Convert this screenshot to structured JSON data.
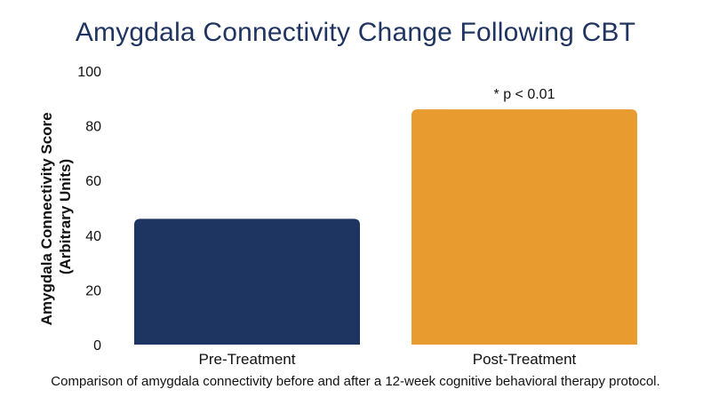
{
  "chart_data": {
    "type": "bar",
    "title": "Amygdala Connectivity Change Following CBT",
    "ylabel_lines": [
      "Amygdala Connectivity Score",
      "(Arbitrary Units)"
    ],
    "xlabel": "",
    "categories": [
      "Pre-Treatment",
      "Post-Treatment"
    ],
    "values": [
      46,
      86
    ],
    "colors": [
      "#1e3461",
      "#e89b2f"
    ],
    "ylim": [
      0,
      100
    ],
    "yticks": [
      "0",
      "20",
      "40",
      "60",
      "80",
      "100"
    ],
    "grid": false,
    "annotation": "* p < 0.01",
    "caption": "Comparison of amygdala connectivity before and after a 12-week cognitive behavioral therapy protocol."
  }
}
